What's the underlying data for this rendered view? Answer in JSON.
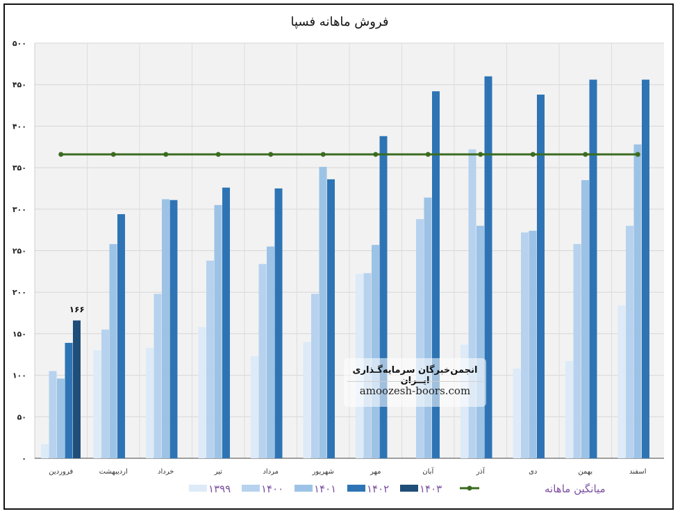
{
  "chart_data": {
    "type": "bar",
    "title": "فروش ماهانه فسپا",
    "categories": [
      "فروردین",
      "اردیبهشت",
      "خرداد",
      "تیر",
      "مرداد",
      "شهریور",
      "مهر",
      "آبان",
      "آذر",
      "دی",
      "بهمن",
      "اسفند"
    ],
    "series": [
      {
        "name": "۱۳۹۹",
        "color": "#ddeaf7",
        "values": [
          17,
          130,
          133,
          158,
          123,
          140,
          222,
          null,
          137,
          108,
          117,
          184
        ]
      },
      {
        "name": "۱۴۰۰",
        "color": "#b6d2ee",
        "values": [
          105,
          155,
          198,
          238,
          234,
          198,
          223,
          288,
          372,
          272,
          258,
          280
        ]
      },
      {
        "name": "۱۴۰۱",
        "color": "#9cc3e6",
        "values": [
          96,
          258,
          312,
          305,
          255,
          351,
          257,
          314,
          280,
          274,
          335,
          378
        ]
      },
      {
        "name": "۱۴۰۲",
        "color": "#2e74b5",
        "values": [
          139,
          294,
          311,
          326,
          325,
          336,
          388,
          442,
          460,
          438,
          456,
          456
        ]
      },
      {
        "name": "۱۴۰۳",
        "color": "#1f4e79",
        "values": [
          166,
          null,
          null,
          null,
          null,
          null,
          null,
          null,
          null,
          null,
          null,
          null
        ]
      }
    ],
    "average": {
      "name": "میانگین ماهانه",
      "value": 366,
      "color": "#3a6b1f"
    },
    "data_labels": [
      {
        "category": "فروردین",
        "series": "۱۴۰۳",
        "text": "۱۶۶"
      }
    ],
    "y_ticks": [
      "۰",
      "۵۰",
      "۱۰۰",
      "۱۵۰",
      "۲۰۰",
      "۲۵۰",
      "۳۰۰",
      "۳۵۰",
      "۴۰۰",
      "۴۵۰",
      "۵۰۰"
    ],
    "ylim": [
      0,
      500
    ],
    "grid": true,
    "legend_position": "bottom"
  },
  "watermark": {
    "line1": "انجمن‌خبرگان سرمایه‌گـذاری ایــران",
    "line2": "amoozesh-boors.com"
  }
}
